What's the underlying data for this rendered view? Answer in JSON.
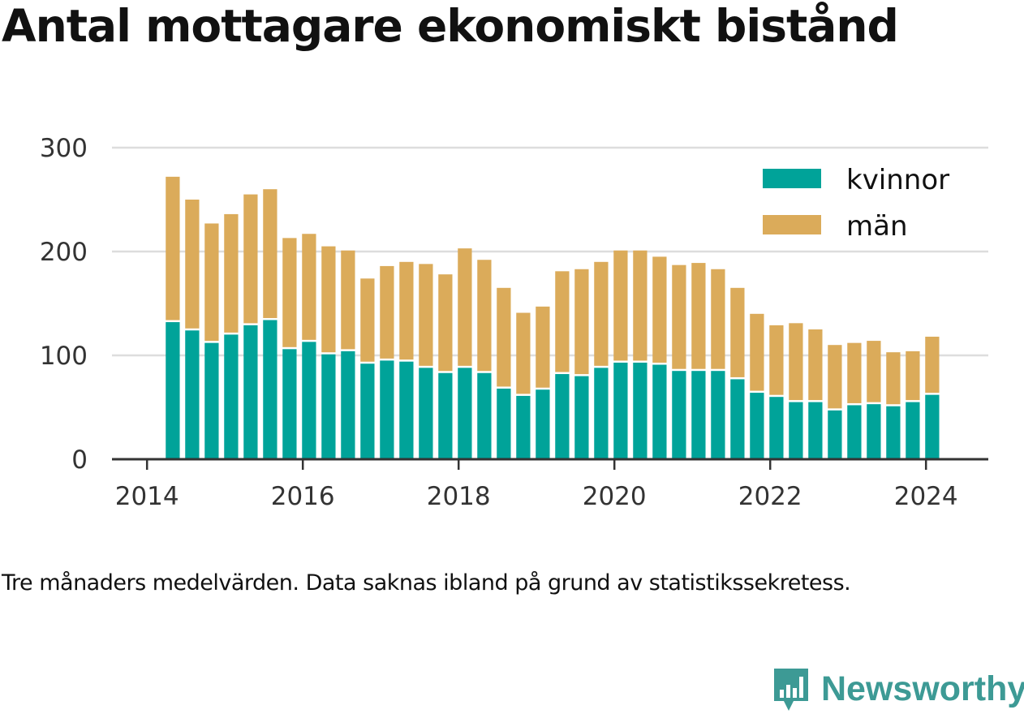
{
  "title": "Antal mottagare ekonomiskt bistånd",
  "caption": "Tre månaders medelvärden. Data saknas ibland på grund av statistikssekretess.",
  "brand": {
    "name": "Newsworthy",
    "color": "#3d9a95",
    "icon": "newsworthy-logo-icon"
  },
  "colors": {
    "kvinnor": "#00a399",
    "man": "#dbab5a",
    "grid": "#dddddd",
    "axis": "#333333"
  },
  "chart_data": {
    "type": "bar",
    "stacked": true,
    "title": "Antal mottagare ekonomiskt bistånd",
    "xlabel": "",
    "ylabel": "",
    "ylim": [
      0,
      300
    ],
    "yticks": [
      0,
      100,
      200,
      300
    ],
    "xticks": [
      2014,
      2016,
      2018,
      2020,
      2022,
      2024
    ],
    "xlim": [
      2013.55,
      2024.8
    ],
    "grid": true,
    "legend": "top-right",
    "x": [
      2014.33,
      2014.58,
      2014.83,
      2015.08,
      2015.33,
      2015.58,
      2015.83,
      2016.08,
      2016.33,
      2016.58,
      2016.83,
      2017.08,
      2017.33,
      2017.58,
      2017.83,
      2018.08,
      2018.33,
      2018.58,
      2018.83,
      2019.08,
      2019.33,
      2019.58,
      2019.83,
      2020.08,
      2020.33,
      2020.58,
      2020.83,
      2021.08,
      2021.33,
      2021.58,
      2021.83,
      2022.08,
      2022.33,
      2022.58,
      2022.83,
      2023.08,
      2023.33,
      2023.58,
      2023.83,
      2024.08
    ],
    "series": [
      {
        "name": "kvinnor",
        "color": "#00a399",
        "values": [
          132,
          124,
          112,
          120,
          129,
          134,
          106,
          113,
          101,
          104,
          92,
          95,
          94,
          88,
          83,
          88,
          83,
          68,
          61,
          67,
          82,
          80,
          88,
          93,
          93,
          91,
          85,
          85,
          85,
          77,
          64,
          60,
          55,
          55,
          47,
          52,
          53,
          51,
          55,
          62
        ]
      },
      {
        "name": "män",
        "color": "#dbab5a",
        "values": [
          140,
          126,
          115,
          116,
          126,
          126,
          107,
          104,
          104,
          97,
          82,
          91,
          96,
          100,
          95,
          115,
          109,
          97,
          80,
          80,
          99,
          103,
          102,
          108,
          108,
          104,
          102,
          104,
          98,
          88,
          76,
          69,
          76,
          70,
          63,
          60,
          61,
          52,
          49,
          56
        ]
      }
    ]
  }
}
